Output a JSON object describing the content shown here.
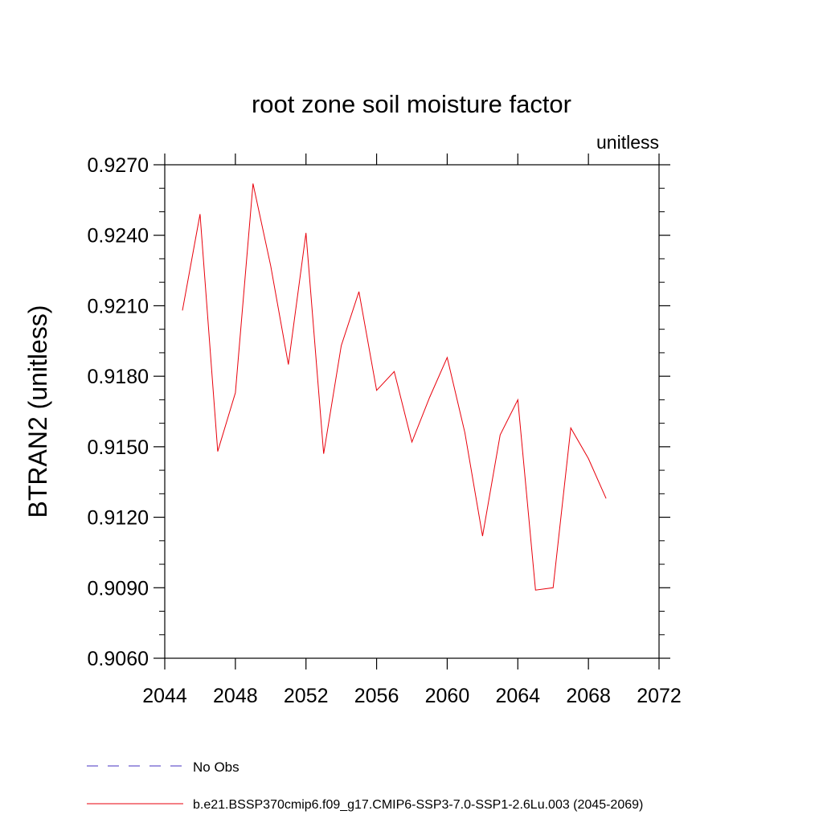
{
  "chart_data": {
    "type": "line",
    "title": "root zone soil moisture factor",
    "units_label": "unitless",
    "ylabel": "BTRAN2  (unitless)",
    "xlabel": "",
    "xlim": [
      2044,
      2072
    ],
    "ylim": [
      0.906,
      0.927
    ],
    "xticks": [
      2044,
      2048,
      2052,
      2056,
      2060,
      2064,
      2068,
      2072
    ],
    "xtick_labels": [
      "2044",
      "2048",
      "2052",
      "2056",
      "2060",
      "2064",
      "2068",
      "2072"
    ],
    "yticks": [
      0.906,
      0.909,
      0.912,
      0.915,
      0.918,
      0.921,
      0.924,
      0.927
    ],
    "ytick_labels": [
      "0.9060",
      "0.9090",
      "0.9120",
      "0.9150",
      "0.9180",
      "0.9210",
      "0.9240",
      "0.9270"
    ],
    "grid": false,
    "legend_placement": "bottom",
    "series": [
      {
        "name": "b.e21.BSSP370cmip6.f09_g17.CMIP6-SSP3-7.0-SSP1-2.6Lu.003 (2045-2069)",
        "color": "#e8000b",
        "style": "solid",
        "x": [
          2045,
          2046,
          2047,
          2048,
          2049,
          2050,
          2051,
          2052,
          2053,
          2054,
          2055,
          2056,
          2057,
          2058,
          2059,
          2060,
          2061,
          2062,
          2063,
          2064,
          2065,
          2066,
          2067,
          2068,
          2069
        ],
        "y": [
          0.9208,
          0.9249,
          0.9148,
          0.9173,
          0.9262,
          0.9227,
          0.9185,
          0.9241,
          0.9147,
          0.9193,
          0.9216,
          0.9174,
          0.9182,
          0.9152,
          0.9171,
          0.9188,
          0.9156,
          0.9112,
          0.9155,
          0.917,
          0.9089,
          0.909,
          0.9158,
          0.9145,
          0.9128
        ]
      }
    ],
    "legend": [
      {
        "label": "No Obs",
        "color": "#6a5acd",
        "style": "dashed"
      },
      {
        "label": "b.e21.BSSP370cmip6.f09_g17.CMIP6-SSP3-7.0-SSP1-2.6Lu.003 (2045-2069)",
        "color": "#e8000b",
        "style": "solid"
      }
    ]
  }
}
